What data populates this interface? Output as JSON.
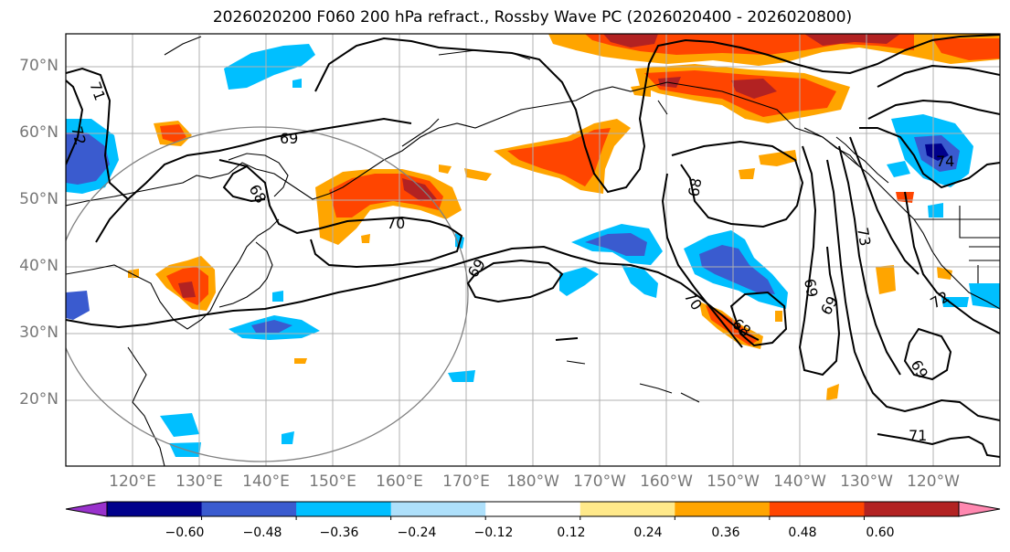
{
  "title": "2026020200 F060 200 hPa refract., Rossby Wave PC (2026020400 - 2026020800)",
  "lat_labels": [
    "70°N",
    "60°N",
    "50°N",
    "40°N",
    "30°N",
    "20°N"
  ],
  "lon_labels": [
    "120°E",
    "130°E",
    "140°E",
    "150°E",
    "160°E",
    "170°E",
    "180°W",
    "170°W",
    "160°W",
    "150°W",
    "140°W",
    "130°W",
    "120°W"
  ],
  "contour_labels": [
    "71",
    "72",
    "69",
    "68",
    "70",
    "69",
    "70",
    "68",
    "68",
    "73",
    "69",
    "69",
    "72",
    "74",
    "69",
    "71"
  ],
  "colorbar": {
    "ticks": [
      "−0.60",
      "−0.48",
      "−0.36",
      "−0.24",
      "−0.12",
      "0.12",
      "0.24",
      "0.36",
      "0.48",
      "0.60"
    ],
    "colors": [
      "#9932cc",
      "#00008b",
      "#3a5bcf",
      "#00bfff",
      "#aee0fb",
      "#ffffff",
      "#ffe98a",
      "#ffa500",
      "#ff4500",
      "#b22222",
      "#ff88b0"
    ]
  }
}
